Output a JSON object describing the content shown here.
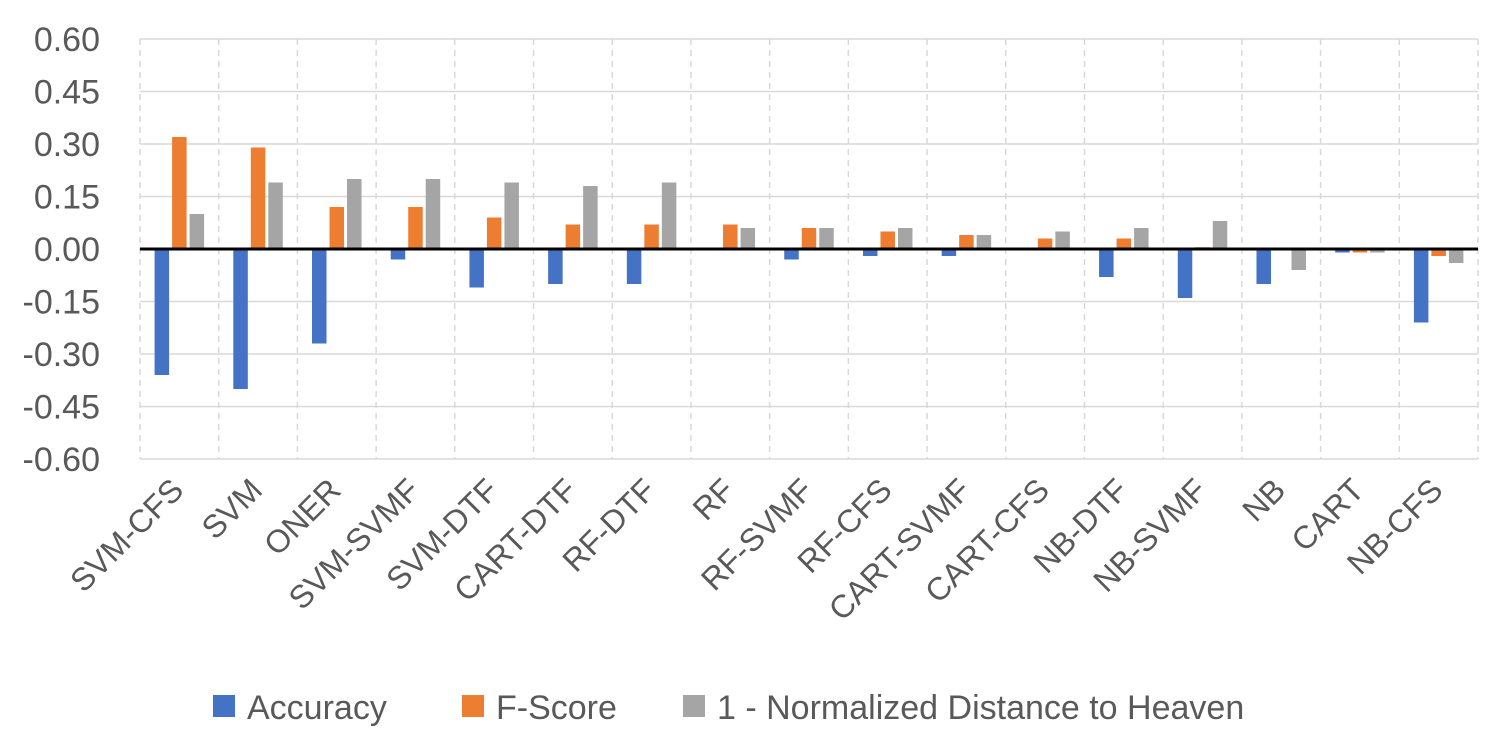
{
  "chart_data": {
    "type": "bar",
    "title": "",
    "xlabel": "",
    "ylabel": "",
    "ylim": [
      -0.6,
      0.6
    ],
    "y_ticks": [
      "0.60",
      "0.45",
      "0.30",
      "0.15",
      "0.00",
      "-0.15",
      "-0.30",
      "-0.45",
      "-0.60"
    ],
    "y_tick_values": [
      0.6,
      0.45,
      0.3,
      0.15,
      0.0,
      -0.15,
      -0.3,
      -0.45,
      -0.6
    ],
    "grid": {
      "horizontal": "solid",
      "vertical": "dashed"
    },
    "legend_position": "bottom",
    "categories": [
      "SVM-CFS",
      "SVM",
      "ONER",
      "SVM-SVMF",
      "SVM-DTF",
      "CART-DTF",
      "RF-DTF",
      "RF",
      "RF-SVMF",
      "RF-CFS",
      "CART-SVMF",
      "CART-CFS",
      "NB-DTF",
      "NB-SVMF",
      "NB",
      "CART",
      "NB-CFS"
    ],
    "series": [
      {
        "name": "Accuracy",
        "color": "#4472C4",
        "values": [
          -0.36,
          -0.4,
          -0.27,
          -0.03,
          -0.11,
          -0.1,
          -0.1,
          0.0,
          -0.03,
          -0.02,
          -0.02,
          0.0,
          -0.08,
          -0.14,
          -0.1,
          -0.01,
          -0.21
        ]
      },
      {
        "name": "F-Score",
        "color": "#ED7D31",
        "values": [
          0.32,
          0.29,
          0.12,
          0.12,
          0.09,
          0.07,
          0.07,
          0.07,
          0.06,
          0.05,
          0.04,
          0.03,
          0.03,
          0.005,
          0.0,
          -0.01,
          -0.02
        ]
      },
      {
        "name": "1 - Normalized Distance to Heaven",
        "color": "#A5A5A5",
        "values": [
          0.1,
          0.19,
          0.2,
          0.2,
          0.19,
          0.18,
          0.19,
          0.06,
          0.06,
          0.06,
          0.04,
          0.05,
          0.06,
          0.08,
          -0.06,
          -0.01,
          -0.04
        ]
      }
    ]
  }
}
